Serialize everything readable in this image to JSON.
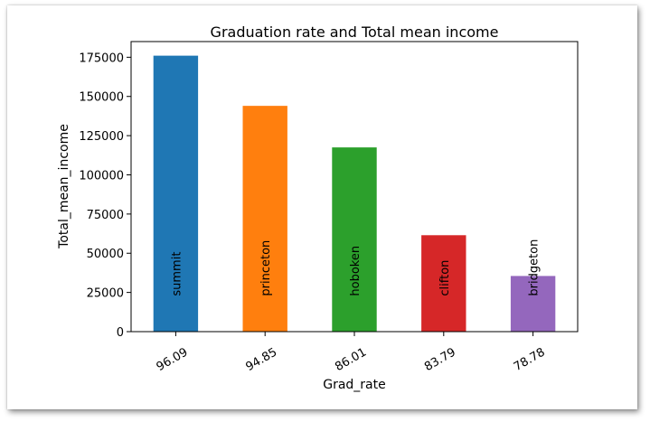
{
  "chart_data": {
    "type": "bar",
    "title": "Graduation rate and Total mean income",
    "xlabel": "Grad_rate",
    "ylabel": "Total_mean_income",
    "categories": [
      "96.09",
      "94.85",
      "86.01",
      "83.79",
      "78.78"
    ],
    "values": [
      176000,
      144000,
      117500,
      61500,
      35500
    ],
    "bar_labels": [
      "summit",
      "princeton",
      "hoboken",
      "clifton",
      "bridgeton"
    ],
    "colors": [
      "#1f77b4",
      "#ff7f0e",
      "#2ca02c",
      "#d62728",
      "#9467bd"
    ],
    "ylim": [
      0,
      185000
    ],
    "yticks": [
      0,
      25000,
      50000,
      75000,
      100000,
      125000,
      150000,
      175000
    ],
    "ytick_labels": [
      "0",
      "25000",
      "50000",
      "75000",
      "100000",
      "125000",
      "150000",
      "175000"
    ],
    "grid": false,
    "legend": "none"
  }
}
